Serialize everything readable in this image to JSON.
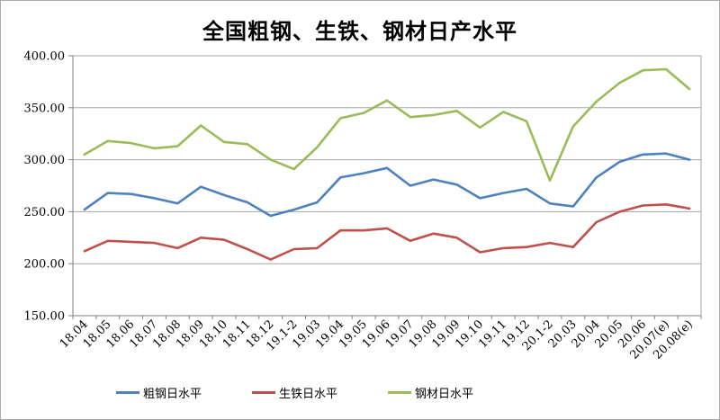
{
  "title": "全国粗钢、生铁、钢材日产水平",
  "chart_data": {
    "type": "line",
    "categories": [
      "18.04",
      "18.05",
      "18.06",
      "18.07",
      "18.08",
      "18.09",
      "18.10",
      "18.11",
      "18.12",
      "19.1-2",
      "19.03",
      "19.04",
      "19.05",
      "19.06",
      "19.07",
      "19.08",
      "19.09",
      "19.10",
      "19.11",
      "19.12",
      "20.1-2",
      "20.03",
      "20.04",
      "20.05",
      "20.06",
      "20.07(e)",
      "20.08(e)"
    ],
    "series": [
      {
        "name": "粗钢日水平",
        "color": "#4F81BD",
        "values": [
          252,
          268,
          267,
          263,
          258,
          274,
          266,
          259,
          246,
          252,
          259,
          283,
          287,
          292,
          275,
          281,
          276,
          263,
          268,
          272,
          258,
          255,
          283,
          298,
          305,
          306,
          300
        ]
      },
      {
        "name": "生铁日水平",
        "color": "#C0504D",
        "values": [
          212,
          222,
          221,
          220,
          215,
          225,
          223,
          214,
          204,
          214,
          215,
          232,
          232,
          234,
          222,
          229,
          225,
          211,
          215,
          216,
          220,
          216,
          240,
          250,
          256,
          257,
          253
        ]
      },
      {
        "name": "钢材日水平",
        "color": "#9BBB59",
        "values": [
          305,
          318,
          316,
          311,
          313,
          333,
          317,
          315,
          300,
          291,
          312,
          340,
          345,
          357,
          341,
          343,
          347,
          331,
          346,
          337,
          280,
          332,
          356,
          374,
          386,
          387,
          368
        ]
      }
    ],
    "title": "全国粗钢、生铁、钢材日产水平",
    "xlabel": "",
    "ylabel": "",
    "ylim": [
      150,
      400
    ],
    "y_tick_step": 50,
    "y_tick_labels": [
      "400.00",
      "350.00",
      "300.00",
      "250.00",
      "200.00",
      "150.00"
    ],
    "grid": true,
    "legend_position": "bottom"
  },
  "colors": {
    "grid": "#a6a6a6",
    "axis": "#808080",
    "plot_border": "#a6a6a6",
    "text": "#000000",
    "background": "#ffffff"
  }
}
